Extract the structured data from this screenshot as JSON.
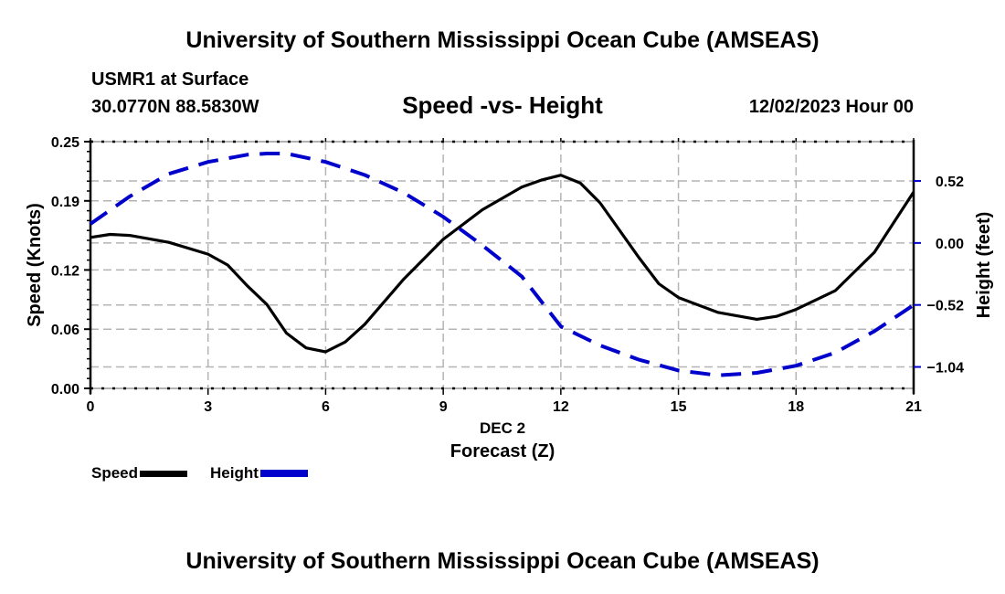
{
  "header": {
    "main_title": "University of Southern Mississippi Ocean Cube (AMSEAS)",
    "station": "USMR1 at Surface",
    "coords": "30.0770N  88.5830W",
    "subtitle": "Speed -vs- Height",
    "datetime": "12/02/2023 Hour 00"
  },
  "footer": {
    "bottom_title": "University of Southern Mississippi Ocean Cube (AMSEAS)"
  },
  "legend": {
    "items": [
      {
        "label": "Speed",
        "color": "#000000",
        "style": "solid"
      },
      {
        "label": "Height",
        "color": "#0000cc",
        "style": "dashed"
      }
    ]
  },
  "chart_data": {
    "type": "line",
    "title": "Speed -vs- Height",
    "xlabel": "Forecast (Z)",
    "xsublabel": "DEC 2",
    "ylabel": "Speed (Knots)",
    "y2label": "Height (feet)",
    "xlim": [
      0,
      21
    ],
    "ylim": [
      0,
      0.25
    ],
    "y2lim": [
      -1.22,
      0.85
    ],
    "xticks": [
      0,
      3,
      6,
      9,
      12,
      15,
      18,
      21
    ],
    "xtick_labels": [
      "0",
      "3",
      "6",
      "9",
      "12",
      "15",
      "18",
      "21"
    ],
    "yticks": [
      0.0,
      0.06,
      0.12,
      0.19,
      0.25
    ],
    "ytick_labels": [
      "0.00",
      "0.06",
      "0.12",
      "0.19",
      "0.25"
    ],
    "y2ticks": [
      0.52,
      0.0,
      -0.52,
      -1.04
    ],
    "y2tick_labels": [
      "0.52",
      "0.00",
      "−0.52",
      "−1.04"
    ],
    "grid": true,
    "legend_position": "bottom-left",
    "series": [
      {
        "name": "Speed",
        "axis": "left",
        "color": "#000000",
        "style": "solid",
        "x": [
          0,
          0.5,
          1,
          2,
          3,
          3.5,
          4,
          4.5,
          5,
          5.5,
          6,
          6.5,
          7,
          8,
          8.5,
          9,
          10,
          11,
          11.5,
          12,
          12.5,
          13,
          14,
          14.5,
          15,
          16,
          17,
          17.5,
          18,
          19,
          20,
          21
        ],
        "values": [
          0.153,
          0.156,
          0.155,
          0.148,
          0.136,
          0.125,
          0.104,
          0.085,
          0.056,
          0.041,
          0.037,
          0.047,
          0.065,
          0.111,
          0.131,
          0.151,
          0.181,
          0.204,
          0.211,
          0.216,
          0.208,
          0.188,
          0.132,
          0.106,
          0.092,
          0.077,
          0.07,
          0.073,
          0.08,
          0.099,
          0.138,
          0.199
        ]
      },
      {
        "name": "Height",
        "axis": "right",
        "color": "#0000cc",
        "style": "dashed",
        "x": [
          0,
          1,
          2,
          3,
          4,
          4.5,
          5,
          6,
          7,
          8,
          9,
          10,
          11,
          12,
          13,
          14,
          15,
          16,
          17,
          18,
          19,
          20,
          21
        ],
        "values": [
          0.16,
          0.39,
          0.58,
          0.68,
          0.74,
          0.75,
          0.75,
          0.68,
          0.57,
          0.42,
          0.22,
          -0.02,
          -0.28,
          -0.7,
          -0.86,
          -0.98,
          -1.07,
          -1.11,
          -1.09,
          -1.03,
          -0.92,
          -0.74,
          -0.52
        ]
      }
    ]
  }
}
